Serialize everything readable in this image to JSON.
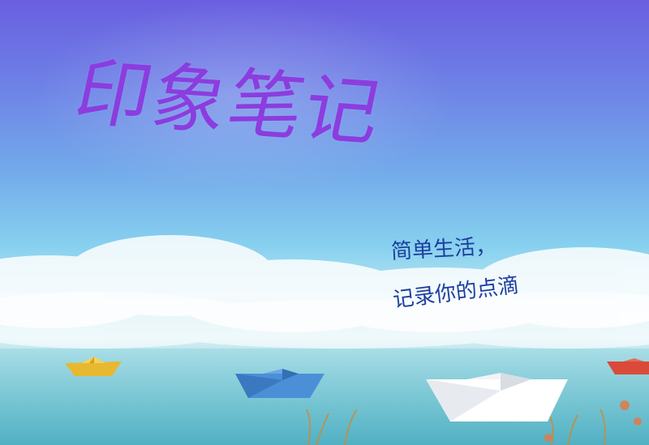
{
  "app": {
    "title": "印象笔记",
    "tagline_line1": "简单生活，",
    "tagline_line2": "记录你的点滴"
  },
  "colors": {
    "title": "#8b3ddf",
    "tagline": "#1d3f9e",
    "sky_top": "#6a5fe0",
    "sea": "#61b9ca"
  },
  "icons": {
    "boats": [
      "yellow-paper-boat-icon",
      "blue-paper-boat-icon",
      "white-paper-boat-icon",
      "red-paper-boat-icon"
    ]
  }
}
